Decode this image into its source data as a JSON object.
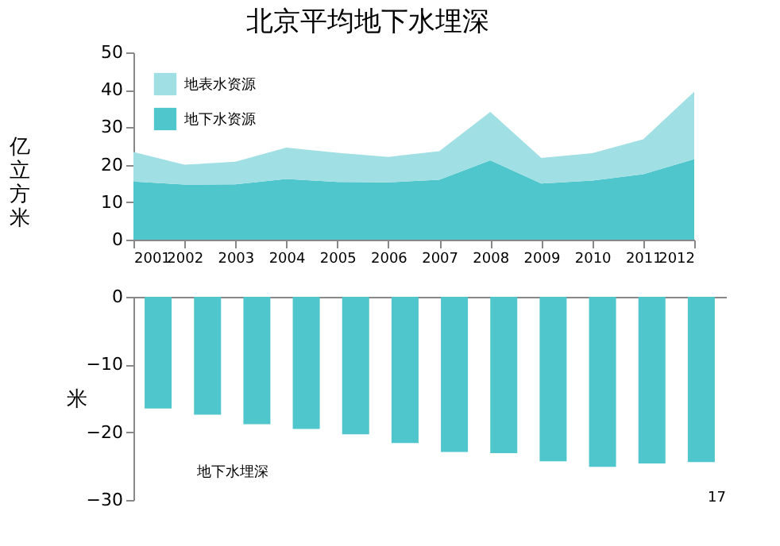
{
  "chart_data": [
    {
      "type": "area",
      "title": "北京平均地下水埋深",
      "ylabel": "亿立方米",
      "stacked": true,
      "legend": "top left",
      "grid": false,
      "x": [
        2001,
        2002,
        2003,
        2004,
        2005,
        2006,
        2007,
        2008,
        2009,
        2010,
        2011,
        2012
      ],
      "xlim": [
        2001,
        2012
      ],
      "xticks": [
        2001,
        2002,
        2003,
        2004,
        2005,
        2006,
        2007,
        2008,
        2009,
        2010,
        2011,
        2012
      ],
      "ylim": [
        0,
        50
      ],
      "yticks": [
        0,
        10,
        20,
        30,
        40,
        50
      ],
      "series": [
        {
          "name": "地下水资源",
          "color": "#4fc6cc",
          "values": [
            15.5,
            14.7,
            14.8,
            16.2,
            15.4,
            15.3,
            16.0,
            21.2,
            15.0,
            15.8,
            17.5,
            21.5
          ]
        },
        {
          "name": "地表水资源",
          "color": "#a0dfe3",
          "values": [
            7.9,
            5.3,
            6.0,
            8.4,
            7.8,
            6.8,
            7.6,
            12.9,
            6.8,
            7.3,
            9.3,
            18.0
          ]
        }
      ]
    },
    {
      "type": "bar",
      "ylabel": "米",
      "grid": false,
      "tick_labels": "y",
      "categories": [
        null,
        null,
        null,
        null,
        null,
        null,
        null,
        null,
        null,
        null,
        null,
        null
      ],
      "ylim": [
        -30,
        0
      ],
      "yticks": [
        -30,
        -20,
        -10,
        0
      ],
      "series": [
        {
          "color": "#4fc6cc",
          "values": [
            -16.5,
            -17.4,
            -18.8,
            -19.5,
            -20.3,
            -21.6,
            -22.9,
            -23.1,
            -24.3,
            -25.1,
            -24.6,
            -24.4
          ]
        }
      ],
      "annotations": [
        "地下水埋深",
        "17"
      ]
    }
  ]
}
